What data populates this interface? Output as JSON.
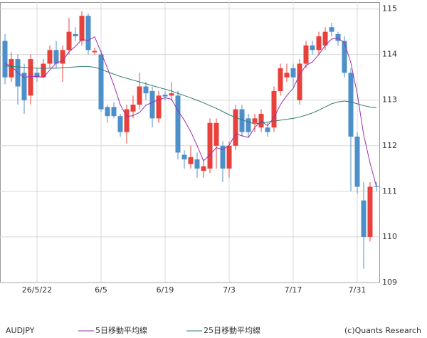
{
  "chart_data": {
    "type": "candlestick",
    "symbol": "AUDJPY",
    "credit": "(c)Quants Research",
    "categories": [
      null,
      null,
      null,
      null,
      null,
      "26/5/22",
      null,
      null,
      null,
      null,
      null,
      null,
      null,
      null,
      null,
      "6/5",
      null,
      null,
      null,
      null,
      null,
      null,
      null,
      null,
      null,
      "6/19",
      null,
      null,
      null,
      null,
      null,
      null,
      null,
      null,
      null,
      "7/3",
      null,
      null,
      null,
      null,
      null,
      null,
      null,
      null,
      null,
      "7/17",
      null,
      null,
      null,
      null,
      null,
      null,
      null,
      null,
      null,
      "7/31",
      null,
      null,
      null
    ],
    "up_color": "#e8403b",
    "down_color": "#4d8fc8",
    "open": [
      114.3,
      113.5,
      113.9,
      113.6,
      113.1,
      113.6,
      113.5,
      113.8,
      114.1,
      113.8,
      114.1,
      114.45,
      114.3,
      114.85,
      114.05,
      114.0,
      112.85,
      112.85,
      112.65,
      112.3,
      112.75,
      112.9,
      113.3,
      113.2,
      112.6,
      113.12,
      113.1,
      113.1,
      111.8,
      111.6,
      111.7,
      111.45,
      111.5,
      112.0,
      112.0,
      111.5,
      112.0,
      112.8,
      112.6,
      112.5,
      112.4,
      112.4,
      112.4,
      113.2,
      113.5,
      113.7,
      113.0,
      113.8,
      114.2,
      114.1,
      114.2,
      114.6,
      114.45,
      114.3,
      113.6,
      112.2,
      110.8,
      110.0,
      111.12
    ],
    "high": [
      114.45,
      114.05,
      114.0,
      113.8,
      114.0,
      113.7,
      113.9,
      114.2,
      114.3,
      114.2,
      114.8,
      114.6,
      114.95,
      114.9,
      114.15,
      114.1,
      112.9,
      112.95,
      112.7,
      112.9,
      113.1,
      113.6,
      113.4,
      113.3,
      113.2,
      113.2,
      113.4,
      113.2,
      111.9,
      112.0,
      111.85,
      111.7,
      112.6,
      112.6,
      112.1,
      112.1,
      112.9,
      112.9,
      112.7,
      112.7,
      112.8,
      112.5,
      113.3,
      113.8,
      113.8,
      113.8,
      113.9,
      114.3,
      114.3,
      114.5,
      114.6,
      114.7,
      114.5,
      114.4,
      113.7,
      112.3,
      111.2,
      111.2,
      111.2
    ],
    "low": [
      113.35,
      113.4,
      112.9,
      112.7,
      112.9,
      113.4,
      113.5,
      113.7,
      113.7,
      113.4,
      114.0,
      114.3,
      114.2,
      114.0,
      114.0,
      112.75,
      112.5,
      112.6,
      112.2,
      112.05,
      112.6,
      112.8,
      113.0,
      112.4,
      112.5,
      113.0,
      113.0,
      111.7,
      111.5,
      111.5,
      111.3,
      111.3,
      111.4,
      111.5,
      111.2,
      111.3,
      111.9,
      112.2,
      112.2,
      112.3,
      112.3,
      112.2,
      112.3,
      113.1,
      113.4,
      113.3,
      112.9,
      113.7,
      114.0,
      114.0,
      114.1,
      114.4,
      114.2,
      113.5,
      111.0,
      110.95,
      109.3,
      109.9,
      111.0
    ],
    "close": [
      113.5,
      113.9,
      113.3,
      113.0,
      113.9,
      113.5,
      113.8,
      114.1,
      113.8,
      114.1,
      114.5,
      114.4,
      114.85,
      114.1,
      114.08,
      112.8,
      112.65,
      112.65,
      112.3,
      112.8,
      112.9,
      113.3,
      113.15,
      112.6,
      113.1,
      113.08,
      113.15,
      111.85,
      111.7,
      111.75,
      111.5,
      111.55,
      112.5,
      112.5,
      111.5,
      112.0,
      112.8,
      112.3,
      112.3,
      112.6,
      112.7,
      112.3,
      113.2,
      113.7,
      113.6,
      113.5,
      113.8,
      114.2,
      114.1,
      114.4,
      114.5,
      114.5,
      114.3,
      113.6,
      112.2,
      111.1,
      110.0,
      111.1,
      111.1
    ],
    "series": [
      {
        "name": "5日移動平均線",
        "color": "#9b2fae",
        "values": [
          113.8,
          113.75,
          113.6,
          113.5,
          113.52,
          113.52,
          113.5,
          113.66,
          113.82,
          113.86,
          114.06,
          114.18,
          114.33,
          114.31,
          114.39,
          114.05,
          113.7,
          113.33,
          112.9,
          112.64,
          112.66,
          112.73,
          112.89,
          112.95,
          113.01,
          113.05,
          113.02,
          112.77,
          112.56,
          112.31,
          112.0,
          111.67,
          111.8,
          111.96,
          111.91,
          112.01,
          112.26,
          112.22,
          112.18,
          112.4,
          112.54,
          112.44,
          112.62,
          112.9,
          113.1,
          113.26,
          113.56,
          113.76,
          113.84,
          114.0,
          114.2,
          114.34,
          114.36,
          114.26,
          113.82,
          113.14,
          112.24,
          111.62,
          111.1
        ]
      },
      {
        "name": "25日移動平均線",
        "color": "#2e7d6e",
        "values": [
          113.75,
          113.74,
          113.73,
          113.72,
          113.71,
          113.7,
          113.7,
          113.7,
          113.7,
          113.71,
          113.72,
          113.73,
          113.74,
          113.74,
          113.72,
          113.68,
          113.62,
          113.57,
          113.52,
          113.48,
          113.44,
          113.4,
          113.36,
          113.32,
          113.28,
          113.24,
          113.2,
          113.15,
          113.1,
          113.05,
          113.0,
          112.94,
          112.88,
          112.82,
          112.75,
          112.68,
          112.62,
          112.57,
          112.52,
          112.48,
          112.5,
          112.52,
          112.54,
          112.56,
          112.58,
          112.6,
          112.63,
          112.67,
          112.72,
          112.78,
          112.85,
          112.92,
          112.96,
          112.98,
          112.96,
          112.92,
          112.88,
          112.85,
          112.83
        ]
      }
    ],
    "ylim": [
      109,
      115.15
    ],
    "yticks": [
      109,
      110,
      111,
      112,
      113,
      114,
      115
    ],
    "grid": true
  }
}
